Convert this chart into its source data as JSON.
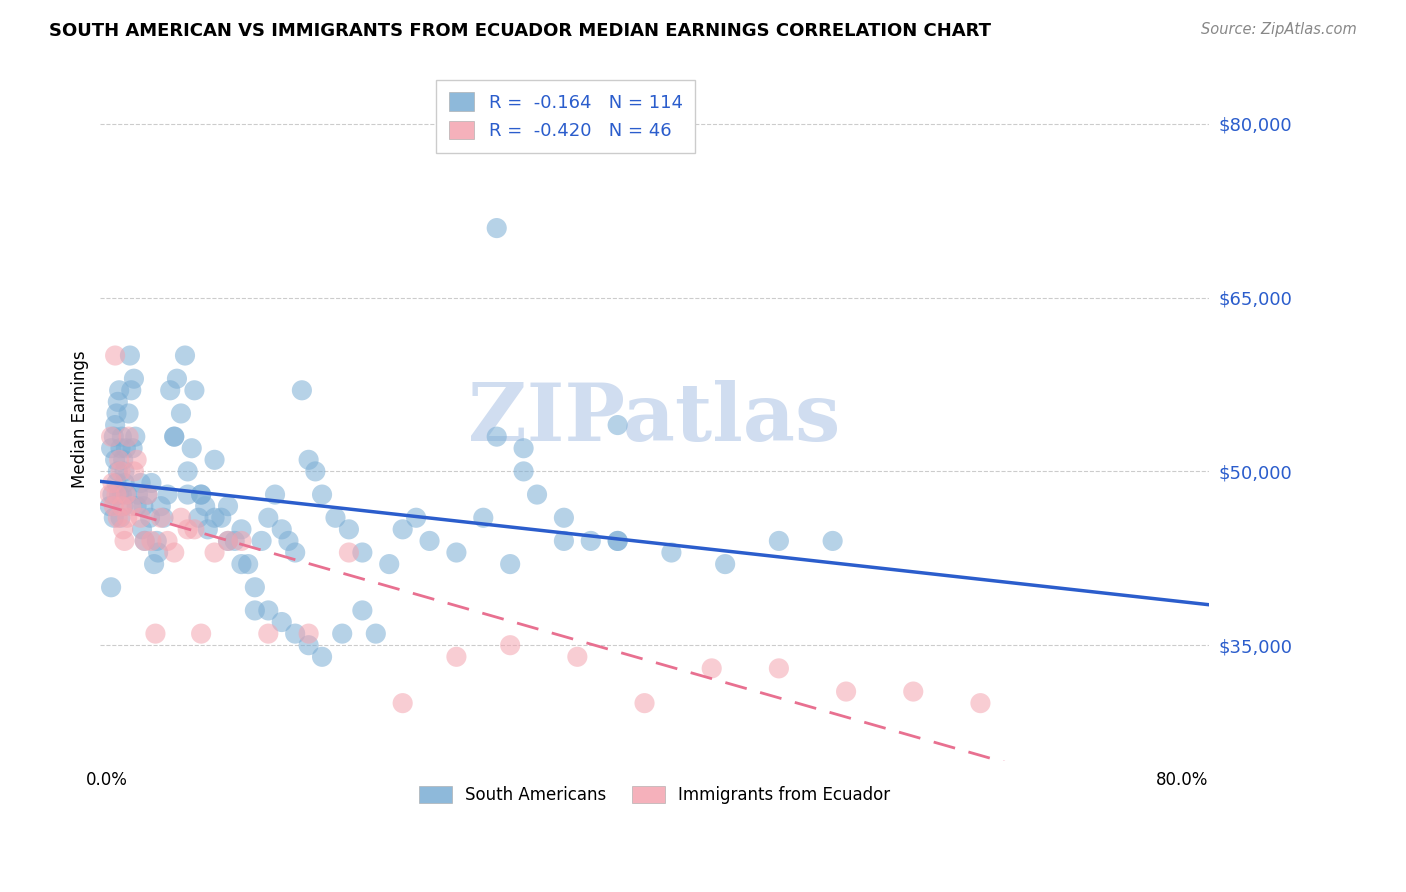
{
  "title": "SOUTH AMERICAN VS IMMIGRANTS FROM ECUADOR MEDIAN EARNINGS CORRELATION CHART",
  "source": "Source: ZipAtlas.com",
  "ylabel": "Median Earnings",
  "yticks": [
    35000,
    50000,
    65000,
    80000
  ],
  "ytick_labels": [
    "$35,000",
    "$50,000",
    "$65,000",
    "$80,000"
  ],
  "ylim": [
    25000,
    84000
  ],
  "xlim": [
    -0.005,
    0.82
  ],
  "blue_R": "-0.164",
  "blue_N": "114",
  "pink_R": "-0.420",
  "pink_N": "46",
  "blue_color": "#7aadd4",
  "pink_color": "#f4a4b0",
  "blue_line_color": "#2b5dcc",
  "pink_line_color": "#e87090",
  "watermark_color": "#d0ddf0",
  "legend_label_blue": "South Americans",
  "legend_label_pink": "Immigrants from Ecuador",
  "blue_scatter_x": [
    0.002,
    0.003,
    0.004,
    0.005,
    0.006,
    0.006,
    0.007,
    0.007,
    0.008,
    0.008,
    0.009,
    0.009,
    0.01,
    0.01,
    0.011,
    0.011,
    0.012,
    0.012,
    0.013,
    0.013,
    0.014,
    0.015,
    0.016,
    0.017,
    0.018,
    0.019,
    0.02,
    0.021,
    0.022,
    0.023,
    0.025,
    0.026,
    0.027,
    0.028,
    0.03,
    0.032,
    0.033,
    0.035,
    0.037,
    0.038,
    0.04,
    0.042,
    0.045,
    0.047,
    0.05,
    0.052,
    0.055,
    0.058,
    0.06,
    0.063,
    0.065,
    0.068,
    0.07,
    0.073,
    0.075,
    0.08,
    0.085,
    0.09,
    0.095,
    0.1,
    0.105,
    0.11,
    0.115,
    0.12,
    0.125,
    0.13,
    0.135,
    0.14,
    0.145,
    0.15,
    0.155,
    0.16,
    0.17,
    0.18,
    0.19,
    0.2,
    0.21,
    0.22,
    0.23,
    0.24,
    0.26,
    0.28,
    0.3,
    0.32,
    0.34,
    0.38,
    0.42,
    0.46,
    0.5,
    0.54,
    0.05,
    0.06,
    0.07,
    0.08,
    0.09,
    0.1,
    0.11,
    0.12,
    0.13,
    0.14,
    0.15,
    0.16,
    0.175,
    0.19,
    0.29,
    0.31,
    0.34,
    0.36,
    0.38,
    0.29,
    0.31,
    0.38,
    0.005,
    0.003
  ],
  "blue_scatter_y": [
    47000,
    52000,
    48000,
    53000,
    54000,
    51000,
    55000,
    49000,
    56000,
    50000,
    57000,
    48000,
    52000,
    46000,
    53000,
    48000,
    51000,
    47000,
    49000,
    50000,
    52000,
    48000,
    55000,
    60000,
    57000,
    52000,
    58000,
    53000,
    47000,
    48000,
    49000,
    45000,
    47000,
    44000,
    48000,
    46000,
    49000,
    42000,
    44000,
    43000,
    47000,
    46000,
    48000,
    57000,
    53000,
    58000,
    55000,
    60000,
    48000,
    52000,
    57000,
    46000,
    48000,
    47000,
    45000,
    51000,
    46000,
    47000,
    44000,
    45000,
    42000,
    38000,
    44000,
    46000,
    48000,
    45000,
    44000,
    43000,
    57000,
    51000,
    50000,
    48000,
    46000,
    45000,
    43000,
    36000,
    42000,
    45000,
    46000,
    44000,
    43000,
    46000,
    42000,
    48000,
    46000,
    44000,
    43000,
    42000,
    44000,
    44000,
    53000,
    50000,
    48000,
    46000,
    44000,
    42000,
    40000,
    38000,
    37000,
    36000,
    35000,
    34000,
    36000,
    38000,
    53000,
    50000,
    44000,
    44000,
    44000,
    71000,
    52000,
    54000,
    46000,
    40000
  ],
  "pink_scatter_x": [
    0.002,
    0.003,
    0.004,
    0.005,
    0.006,
    0.007,
    0.008,
    0.009,
    0.01,
    0.011,
    0.012,
    0.013,
    0.014,
    0.015,
    0.016,
    0.018,
    0.02,
    0.022,
    0.025,
    0.028,
    0.03,
    0.033,
    0.036,
    0.04,
    0.045,
    0.05,
    0.055,
    0.06,
    0.065,
    0.07,
    0.08,
    0.09,
    0.1,
    0.12,
    0.15,
    0.18,
    0.22,
    0.26,
    0.3,
    0.35,
    0.4,
    0.45,
    0.5,
    0.55,
    0.6,
    0.65
  ],
  "pink_scatter_y": [
    48000,
    53000,
    49000,
    47000,
    60000,
    48000,
    46000,
    51000,
    50000,
    47000,
    45000,
    44000,
    48000,
    46000,
    53000,
    47000,
    50000,
    51000,
    46000,
    44000,
    48000,
    44000,
    36000,
    46000,
    44000,
    43000,
    46000,
    45000,
    45000,
    36000,
    43000,
    44000,
    44000,
    36000,
    36000,
    43000,
    30000,
    34000,
    35000,
    34000,
    30000,
    33000,
    33000,
    31000,
    31000,
    30000
  ]
}
